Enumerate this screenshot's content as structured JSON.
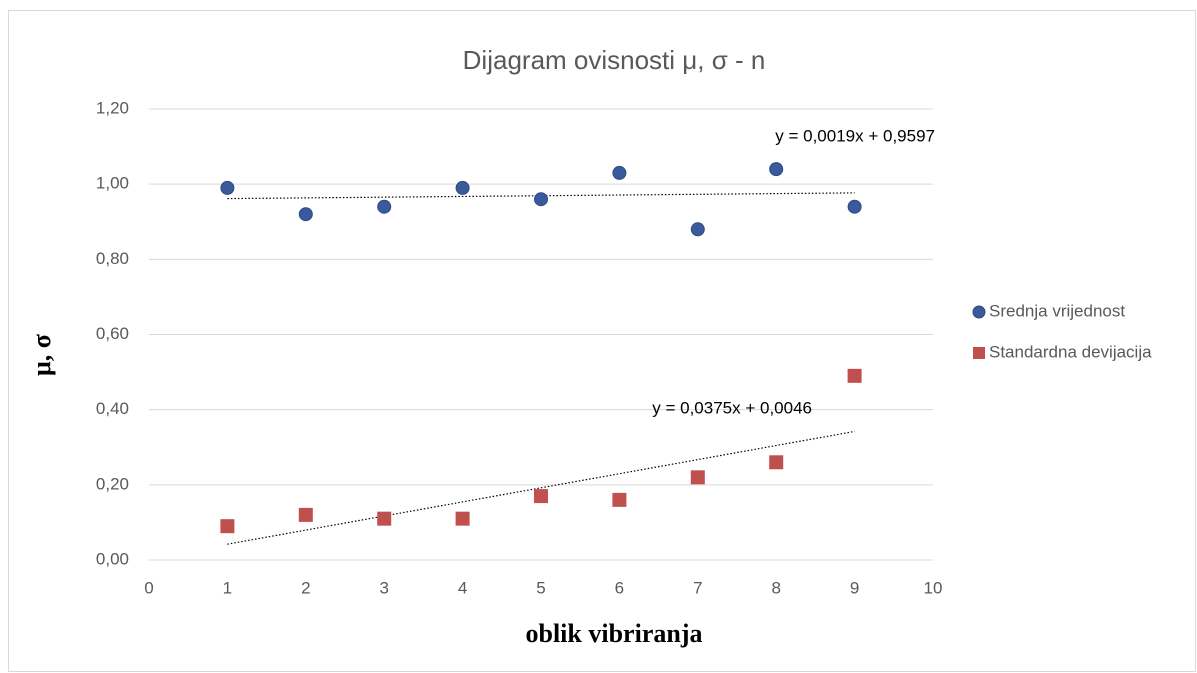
{
  "chart_data": {
    "type": "scatter",
    "title": "Dijagram ovisnosti μ, σ - n",
    "xlabel": "oblik vibriranja",
    "ylabel": "μ, σ",
    "xlim": [
      0,
      10
    ],
    "xticks": [
      0,
      1,
      2,
      3,
      4,
      5,
      6,
      7,
      8,
      9,
      10
    ],
    "ylim": [
      0,
      1.2
    ],
    "yticks": [
      {
        "value": 0,
        "label": "0,00"
      },
      {
        "value": 0.2,
        "label": "0,20"
      },
      {
        "value": 0.4,
        "label": "0,40"
      },
      {
        "value": 0.6,
        "label": "0,60"
      },
      {
        "value": 0.8,
        "label": "0,80"
      },
      {
        "value": 1.0,
        "label": "1,00"
      },
      {
        "value": 1.2,
        "label": "1,20"
      }
    ],
    "grid": true,
    "legend": "right",
    "x": [
      1,
      2,
      3,
      4,
      5,
      6,
      7,
      8,
      9
    ],
    "series": [
      {
        "name": "Srednja vrijednost",
        "color": "#3b5a9d",
        "marker": "circle",
        "values": [
          0.99,
          0.92,
          0.94,
          0.99,
          0.96,
          1.03,
          0.88,
          1.04,
          0.94
        ],
        "trendline": {
          "slope": 0.0019,
          "intercept": 0.9597,
          "label": "y = 0,0019x + 0,9597"
        }
      },
      {
        "name": "Standardna devijacija",
        "color": "#c0504d",
        "marker": "square",
        "values": [
          0.09,
          0.12,
          0.11,
          0.11,
          0.17,
          0.16,
          0.22,
          0.26,
          0.49
        ],
        "trendline": {
          "slope": 0.0375,
          "intercept": 0.0046,
          "label": "y = 0,0375x + 0,0046"
        }
      }
    ]
  }
}
